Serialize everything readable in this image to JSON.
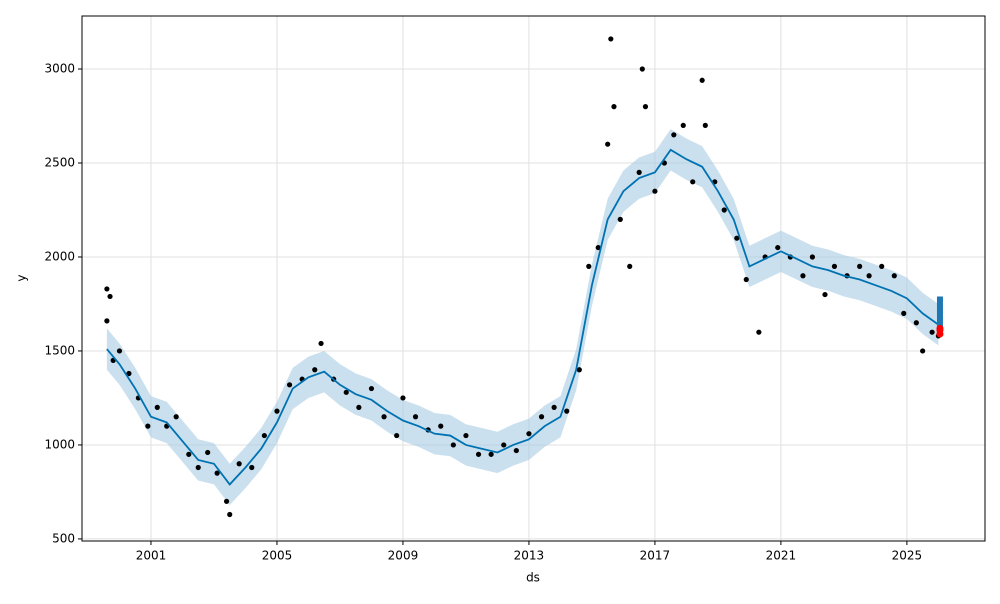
{
  "chart_data": {
    "type": "line",
    "xlabel": "ds",
    "ylabel": "y",
    "xlim": [
      1998.81,
      2027.48
    ],
    "ylim": [
      489,
      3282
    ],
    "xticks": [
      2001,
      2005,
      2009,
      2013,
      2017,
      2021,
      2025
    ],
    "yticks": [
      500,
      1000,
      1500,
      2000,
      2500,
      3000
    ],
    "grid": true,
    "x": [
      1999.6,
      2000,
      2000.5,
      2001,
      2001.5,
      2002,
      2002.5,
      2003,
      2003.5,
      2004,
      2004.5,
      2005,
      2005.5,
      2006,
      2006.5,
      2007,
      2007.5,
      2008,
      2008.5,
      2009,
      2009.5,
      2010,
      2010.5,
      2011,
      2011.5,
      2012,
      2012.5,
      2013,
      2013.5,
      2014,
      2014.5,
      2015,
      2015.5,
      2016,
      2016.5,
      2017,
      2017.5,
      2018,
      2018.5,
      2019,
      2019.5,
      2020,
      2020.5,
      2021,
      2021.5,
      2022,
      2022.5,
      2023,
      2023.5,
      2024,
      2024.5,
      2025,
      2025.5,
      2026
    ],
    "series": [
      {
        "color": "#0072B2",
        "values": [
          1510,
          1430,
          1300,
          1150,
          1120,
          1020,
          920,
          900,
          790,
          880,
          980,
          1120,
          1300,
          1360,
          1390,
          1320,
          1270,
          1240,
          1180,
          1130,
          1100,
          1060,
          1050,
          1000,
          980,
          960,
          1000,
          1030,
          1100,
          1150,
          1400,
          1850,
          2200,
          2350,
          2420,
          2450,
          2570,
          2520,
          2480,
          2350,
          2200,
          1950,
          1990,
          2030,
          1990,
          1950,
          1930,
          1900,
          1880,
          1850,
          1820,
          1780,
          1700,
          1640
        ]
      }
    ],
    "interval": {
      "color": "#a6cbe3",
      "lower": [
        1400,
        1320,
        1190,
        1040,
        1010,
        910,
        810,
        790,
        680,
        770,
        870,
        1010,
        1190,
        1250,
        1280,
        1210,
        1160,
        1130,
        1070,
        1020,
        990,
        950,
        940,
        890,
        870,
        850,
        890,
        920,
        990,
        1040,
        1290,
        1740,
        2090,
        2240,
        2310,
        2340,
        2460,
        2410,
        2370,
        2240,
        2090,
        1840,
        1880,
        1920,
        1880,
        1840,
        1820,
        1790,
        1770,
        1740,
        1710,
        1670,
        1590,
        1530
      ],
      "upper": [
        1620,
        1540,
        1410,
        1260,
        1230,
        1130,
        1030,
        1010,
        900,
        990,
        1090,
        1230,
        1410,
        1470,
        1500,
        1430,
        1380,
        1350,
        1290,
        1240,
        1210,
        1170,
        1160,
        1110,
        1090,
        1070,
        1110,
        1140,
        1210,
        1260,
        1510,
        1960,
        2310,
        2460,
        2530,
        2560,
        2680,
        2630,
        2590,
        2460,
        2310,
        2060,
        2100,
        2140,
        2100,
        2060,
        2040,
        2010,
        1990,
        1960,
        1930,
        1890,
        1810,
        1750
      ]
    },
    "observed": {
      "color": "#000000",
      "x": [
        1999.6,
        1999.6,
        1999.7,
        1999.8,
        2000,
        2000.3,
        2000.6,
        2000.9,
        2001.2,
        2001.5,
        2001.8,
        2002.2,
        2002.5,
        2002.8,
        2003.1,
        2003.4,
        2003.5,
        2003.8,
        2004.2,
        2004.6,
        2005,
        2005.4,
        2005.8,
        2006.2,
        2006.4,
        2006.8,
        2007.2,
        2007.6,
        2008,
        2008.4,
        2008.8,
        2009,
        2009.4,
        2009.8,
        2010.2,
        2010.6,
        2011,
        2011.4,
        2011.8,
        2012.2,
        2012.6,
        2013,
        2013.4,
        2013.8,
        2014.2,
        2014.6,
        2014.9,
        2015.2,
        2015.5,
        2015.6,
        2015.7,
        2015.9,
        2016.2,
        2016.5,
        2016.6,
        2016.7,
        2017,
        2017.3,
        2017.6,
        2017.9,
        2018.2,
        2018.5,
        2018.6,
        2018.9,
        2019.2,
        2019.6,
        2019.9,
        2020.3,
        2020.5,
        2020.9,
        2021.3,
        2021.7,
        2022,
        2022.4,
        2022.7,
        2023.1,
        2023.5,
        2023.8,
        2024.2,
        2024.6,
        2024.9,
        2025.3,
        2025.5,
        2025.8,
        2026
      ],
      "values": [
        1660,
        1830,
        1790,
        1450,
        1500,
        1380,
        1250,
        1100,
        1200,
        1100,
        1150,
        950,
        880,
        960,
        850,
        700,
        630,
        900,
        880,
        1050,
        1180,
        1320,
        1350,
        1400,
        1540,
        1350,
        1280,
        1200,
        1300,
        1150,
        1050,
        1250,
        1150,
        1080,
        1100,
        1000,
        1050,
        950,
        950,
        1000,
        970,
        1060,
        1150,
        1200,
        1180,
        1400,
        1950,
        2050,
        2600,
        3160,
        2800,
        2200,
        1950,
        2450,
        3000,
        2800,
        2350,
        2500,
        2650,
        2700,
        2400,
        2940,
        2700,
        2400,
        2250,
        2100,
        1880,
        1600,
        2000,
        2050,
        2000,
        1900,
        2000,
        1800,
        1950,
        1900,
        1950,
        1900,
        1950,
        1900,
        1700,
        1650,
        1500,
        1600,
        1580
      ]
    },
    "forecast": {
      "color": "#1f77b4",
      "x": [
        2026.05,
        2026.05
      ],
      "values": [
        1600,
        1790
      ]
    },
    "highlight": {
      "color": "#ff0000",
      "x": [
        2026.05,
        2026.05,
        2026.05
      ],
      "values": [
        1590,
        1610,
        1620
      ]
    }
  }
}
